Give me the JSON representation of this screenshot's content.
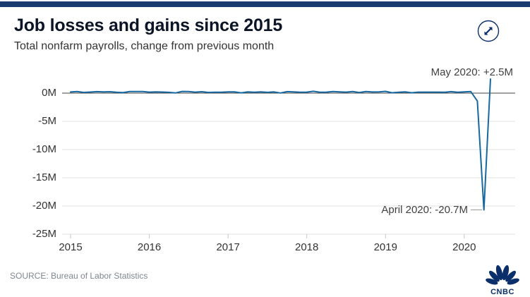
{
  "header": {
    "title": "Job losses and gains since 2015",
    "subtitle": "Total nonfarm payrolls, change from previous month"
  },
  "annotations": {
    "may": "May 2020: +2.5M",
    "april": "April 2020: -20.7M"
  },
  "source": "SOURCE: Bureau of Labor Statistics",
  "logo": {
    "text": "CNBC"
  },
  "colors": {
    "accent_bar": "#1a3c6e",
    "line": "#17699f",
    "zero_axis": "#444444",
    "gridline": "#e2e2e2",
    "tick": "#c8c8c8",
    "connector": "#9a9a9a",
    "navy": "#0b2f6b"
  },
  "chart_data": {
    "type": "line",
    "title": "Job losses and gains since 2015",
    "subtitle": "Total nonfarm payrolls, change from previous month",
    "unit": "millions of jobs, monthly change",
    "x_start": "2015-01",
    "x_end": "2020-05",
    "x_ticks": [
      "2015",
      "2016",
      "2017",
      "2018",
      "2019",
      "2020"
    ],
    "y_ticks": [
      "0M",
      "-5M",
      "-10M",
      "-15M",
      "-20M",
      "-25M"
    ],
    "y_tick_values": [
      0,
      -5,
      -10,
      -15,
      -20,
      -25
    ],
    "ylim": [
      -25,
      2.5
    ],
    "grid": true,
    "legend": false,
    "series": [
      {
        "name": "Total nonfarm payrolls change (millions)",
        "values": [
          0.2,
          0.27,
          0.12,
          0.19,
          0.26,
          0.21,
          0.25,
          0.15,
          0.1,
          0.27,
          0.28,
          0.27,
          0.17,
          0.23,
          0.19,
          0.14,
          0.04,
          0.3,
          0.29,
          0.18,
          0.25,
          0.12,
          0.16,
          0.16,
          0.22,
          0.23,
          0.05,
          0.21,
          0.15,
          0.21,
          0.14,
          0.21,
          0.02,
          0.26,
          0.22,
          0.15,
          0.18,
          0.32,
          0.16,
          0.18,
          0.27,
          0.21,
          0.17,
          0.27,
          0.11,
          0.28,
          0.2,
          0.23,
          0.31,
          0.06,
          0.15,
          0.22,
          0.06,
          0.18,
          0.17,
          0.17,
          0.18,
          0.15,
          0.26,
          0.15,
          0.23,
          0.27,
          -1.4,
          -20.7,
          2.5
        ]
      }
    ],
    "annotations": [
      {
        "label": "May 2020: +2.5M",
        "x": "2020-05",
        "y": 2.5
      },
      {
        "label": "April 2020: -20.7M",
        "x": "2020-04",
        "y": -20.7
      }
    ]
  }
}
